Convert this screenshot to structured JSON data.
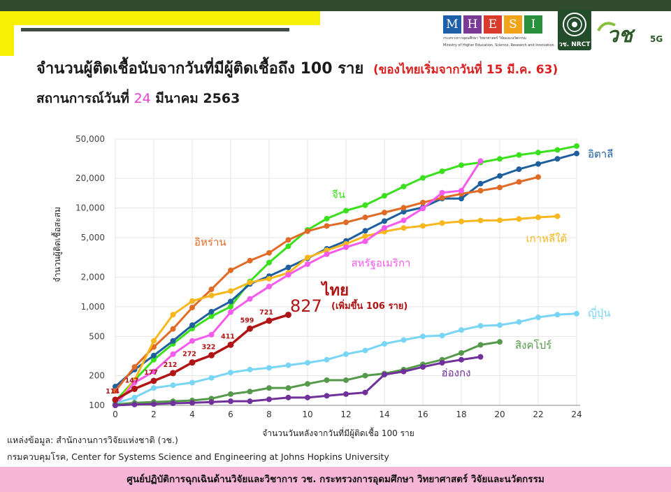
{
  "header": {
    "title": "จำนวนผู้ติดเชื้อนับจากวันที่มีผู้ติดเชื้อถึง 100 ราย",
    "title_note": "(ของไทยเริ่มจากวันที่ 15 มี.ค. 63)",
    "subtitle_prefix": "สถานการณ์วันที่",
    "subtitle_day": "24",
    "subtitle_suffix": "มีนาคม 2563"
  },
  "logos": {
    "mhesi_letters": [
      "M",
      "H",
      "E",
      "S",
      "I"
    ],
    "mhesi_colors": [
      "#1d5fa8",
      "#7b3a96",
      "#d93a2b",
      "#f2a419",
      "#2a8f3c"
    ],
    "mhesi_sub_th": "กระทรวงการอุดมศึกษา วิทยาศาสตร์ วิจัยและนวัตกรรม",
    "mhesi_sub_en": "Ministry of Higher Education, Science, Research and Innovation",
    "nrct_text": "วช. NRCT",
    "brand_mark": "วช",
    "brand_suffix": "5G"
  },
  "chart_data": {
    "type": "line",
    "yscale": "log",
    "ylabel": "จำนวนผู้ติดเชื้อสะสม",
    "xlabel": "จำนวนวันหลังจากวันที่มีผู้ติดเชื้อ 100 ราย",
    "xlim": [
      0,
      24
    ],
    "ylim": [
      100,
      50000
    ],
    "x_ticks": [
      "0",
      "2",
      "4",
      "6",
      "8",
      "10",
      "12",
      "14",
      "16",
      "18",
      "20",
      "22",
      "24"
    ],
    "y_ticks": [
      {
        "value": 100,
        "label": "100"
      },
      {
        "value": 200,
        "label": "200"
      },
      {
        "value": 500,
        "label": "500"
      },
      {
        "value": 1000,
        "label": "1,000"
      },
      {
        "value": 2000,
        "label": "2,000"
      },
      {
        "value": 5000,
        "label": "5,000"
      },
      {
        "value": 10000,
        "label": "10,000"
      },
      {
        "value": 20000,
        "label": "20,000"
      },
      {
        "value": 50000,
        "label": "50,000"
      }
    ],
    "grid": true,
    "series": [
      {
        "name": "จีน",
        "color": "#39e01b",
        "values": [
          110,
          180,
          290,
          420,
          600,
          800,
          1000,
          1800,
          2800,
          4100,
          6000,
          7800,
          9400,
          10700,
          13300,
          16500,
          20200,
          23600,
          27200,
          29000,
          31500,
          34500,
          36500,
          38800,
          42500
        ]
      },
      {
        "name": "อิตาลี",
        "color": "#1f5f9e",
        "values": [
          155,
          230,
          320,
          450,
          650,
          890,
          1130,
          1700,
          2040,
          2500,
          3090,
          3860,
          4640,
          5880,
          7370,
          9170,
          10150,
          12460,
          12460,
          17660,
          21160,
          24750,
          27980,
          31510,
          35700
        ]
      },
      {
        "name": "อิหร่าน",
        "color": "#e06b26",
        "values": [
          140,
          245,
          390,
          595,
          980,
          1500,
          2340,
          2930,
          3510,
          4750,
          5820,
          6580,
          7160,
          8040,
          9000,
          10070,
          11360,
          12700,
          13930,
          14990,
          16160,
          18410,
          20610
        ]
      },
      {
        "name": "เกาหลีใต้",
        "color": "#f8b71d",
        "values": [
          100,
          180,
          450,
          830,
          1140,
          1300,
          1440,
          1760,
          1920,
          2200,
          3150,
          3730,
          4330,
          5180,
          5770,
          6280,
          6590,
          7040,
          7310,
          7480,
          7510,
          7750,
          8040,
          8250
        ]
      },
      {
        "name": "สหรัฐอเมริกา",
        "color": "#f55bec",
        "values": [
          100,
          170,
          220,
          330,
          450,
          520,
          880,
          1200,
          1600,
          2100,
          2700,
          3400,
          4000,
          4600,
          6300,
          7500,
          9900,
          14300,
          15000,
          30000
        ]
      },
      {
        "name": "ญี่ปุ่น",
        "color": "#79d5f4",
        "values": [
          105,
          120,
          150,
          160,
          170,
          190,
          215,
          230,
          240,
          255,
          270,
          290,
          330,
          360,
          420,
          460,
          500,
          510,
          580,
          640,
          650,
          700,
          780,
          830,
          850
        ]
      },
      {
        "name": "สิงคโปร์",
        "color": "#55994a",
        "values": [
          102,
          106,
          108,
          110,
          112,
          117,
          130,
          138,
          150,
          150,
          165,
          180,
          180,
          200,
          210,
          230,
          260,
          290,
          340,
          410,
          440
        ]
      },
      {
        "name": "ฮ่องกง",
        "color": "#70319b",
        "values": [
          100,
          102,
          103,
          105,
          106,
          108,
          110,
          110,
          115,
          120,
          120,
          125,
          130,
          135,
          205,
          220,
          245,
          270,
          290,
          310
        ]
      },
      {
        "name": "ไทย",
        "color": "#b01414",
        "values": [
          114,
          147,
          177,
          212,
          272,
          322,
          411,
          599,
          721,
          827
        ],
        "point_labels": [
          "114",
          "147",
          "177",
          "212",
          "272",
          "322",
          "411",
          "599",
          "721",
          ""
        ]
      }
    ],
    "annotations": {
      "thai_total": "827",
      "thai_increase": "(เพิ่มขึ้น 106 ราย)"
    }
  },
  "footer": {
    "source_line1": "แหล่งข้อมูล: สำนักงานการวิจัยแห่งชาติ (วช.)",
    "source_line2": "กรมควบคุมโรค, Center for Systems Science and Engineering at Johns Hopkins University",
    "banner": "ศูนย์ปฏิบัติการฉุกเฉินด้านวิจัยและวิชาการ   วช.   กระทรวงการอุดมศึกษา วิทยาศาสตร์ วิจัยและนวัตกรรม"
  }
}
